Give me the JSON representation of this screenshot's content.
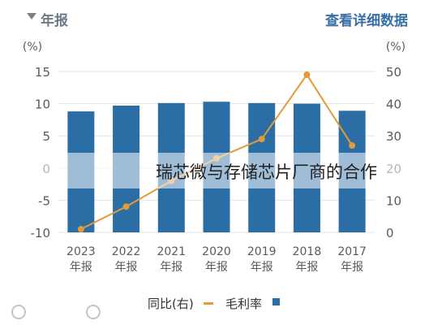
{
  "header": {
    "period_select": "年报",
    "detail_link": "查看详细数据"
  },
  "overlay_text": "瑞芯微与存储芯片厂商的合作",
  "legend": {
    "bar_series": "毛利率",
    "line_series": "同比(右)"
  },
  "colors": {
    "bar": "#2b6ea6",
    "line": "#e39a3b",
    "axis_text": "#5a5a5a",
    "grid": "#e3e3e3"
  },
  "chart_data": {
    "type": "bar",
    "categories": [
      "2023\n年报",
      "2022\n年报",
      "2021\n年报",
      "2020\n年报",
      "2019\n年报",
      "2018\n年报",
      "2017\n年报"
    ],
    "series": [
      {
        "name": "毛利率",
        "type": "bar",
        "axis": "left",
        "values": [
          8.8,
          9.7,
          10.1,
          10.3,
          10.1,
          10.0,
          8.9
        ]
      },
      {
        "name": "同比(右)",
        "type": "line",
        "axis": "right",
        "values": [
          1,
          8,
          16,
          23,
          29,
          49,
          27
        ]
      }
    ],
    "left_axis": {
      "unit": "(%)",
      "ylim": [
        -10,
        15
      ],
      "ticks": [
        15,
        10,
        5,
        0,
        -5,
        -10
      ]
    },
    "right_axis": {
      "unit": "(%)",
      "ylim": [
        0,
        50
      ],
      "ticks": [
        50,
        40,
        30,
        20,
        10,
        0
      ]
    },
    "grid": true,
    "legend_position": "bottom"
  }
}
